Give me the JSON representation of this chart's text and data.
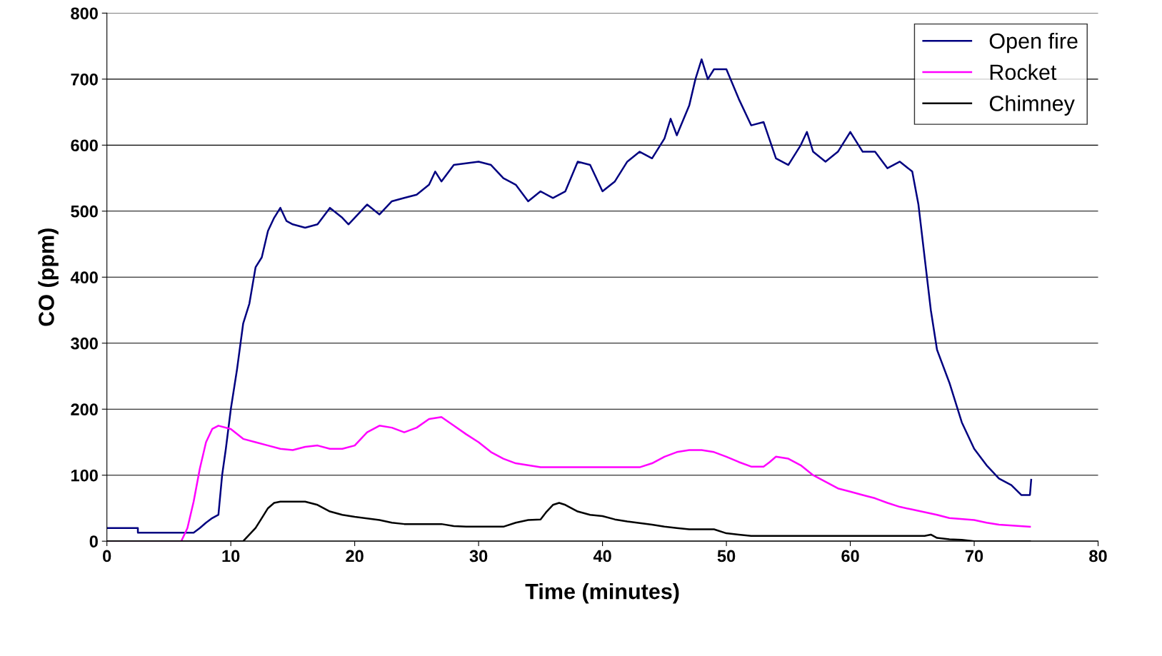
{
  "chart_data": {
    "type": "line",
    "xlabel": "Time (minutes)",
    "ylabel": "CO (ppm)",
    "xlim": [
      0,
      80
    ],
    "xticks": [
      0,
      10,
      20,
      30,
      40,
      50,
      60,
      70,
      80
    ],
    "ylim": [
      0,
      800
    ],
    "yticks": [
      0,
      100,
      200,
      300,
      400,
      500,
      600,
      700,
      800
    ],
    "grid": "y",
    "legend": "top right",
    "marker": "none",
    "line_style": "solid",
    "series": [
      {
        "name": "Open fire",
        "color": "#000080",
        "x": [
          0,
          2.5,
          2.5,
          7,
          7.5,
          8,
          8.5,
          9,
          9.3,
          9.6,
          10,
          10.5,
          11,
          11.5,
          12,
          12.5,
          13,
          13.5,
          14,
          14.5,
          15,
          16,
          17,
          18,
          19,
          19.5,
          20,
          21,
          22,
          23,
          24,
          25,
          26,
          26.5,
          27,
          28,
          30,
          31,
          32,
          33,
          34,
          35,
          36,
          37,
          38,
          39,
          40,
          41,
          42,
          43,
          44,
          45,
          45.5,
          46,
          47,
          47.5,
          48,
          48.5,
          49,
          50,
          51,
          52,
          53,
          54,
          55,
          56,
          56.5,
          57,
          58,
          59,
          60,
          61,
          62,
          63,
          64,
          65,
          65.5,
          66,
          66.5,
          67,
          68,
          69,
          70,
          71,
          72,
          73,
          73.8,
          74.5,
          74.6
        ],
        "values": [
          20,
          20,
          13,
          13,
          20,
          28,
          35,
          40,
          100,
          140,
          200,
          260,
          330,
          360,
          415,
          430,
          470,
          490,
          505,
          485,
          480,
          475,
          480,
          505,
          490,
          480,
          490,
          510,
          495,
          515,
          520,
          525,
          540,
          560,
          545,
          570,
          575,
          570,
          550,
          540,
          515,
          530,
          520,
          530,
          575,
          570,
          530,
          545,
          575,
          590,
          580,
          610,
          640,
          615,
          660,
          700,
          730,
          700,
          715,
          715,
          670,
          630,
          635,
          580,
          570,
          600,
          620,
          590,
          575,
          590,
          620,
          590,
          590,
          565,
          575,
          560,
          510,
          430,
          350,
          290,
          240,
          180,
          140,
          115,
          95,
          85,
          70,
          70,
          93
        ]
      },
      {
        "name": "Rocket",
        "color": "#ff00ff",
        "x": [
          0,
          6,
          6.5,
          7,
          7.5,
          8,
          8.5,
          9,
          10,
          11,
          12,
          13,
          14,
          15,
          16,
          17,
          18,
          19,
          20,
          21,
          22,
          23,
          24,
          25,
          26,
          27,
          28,
          29,
          30,
          31,
          32,
          33,
          34,
          35,
          40,
          43,
          44,
          45,
          46,
          47,
          48,
          49,
          50,
          51,
          52,
          53,
          53.5,
          54,
          55,
          56,
          57,
          58,
          59,
          60,
          61,
          62,
          63,
          64,
          65,
          66,
          67,
          68,
          70,
          71,
          72,
          74.5
        ],
        "values": [
          0,
          0,
          20,
          60,
          110,
          150,
          170,
          175,
          170,
          155,
          150,
          145,
          140,
          138,
          143,
          145,
          140,
          140,
          145,
          165,
          175,
          172,
          165,
          172,
          185,
          188,
          175,
          162,
          150,
          135,
          125,
          118,
          115,
          112,
          112,
          112,
          118,
          128,
          135,
          138,
          138,
          135,
          128,
          120,
          113,
          113,
          120,
          128,
          125,
          115,
          100,
          90,
          80,
          75,
          70,
          65,
          58,
          52,
          48,
          44,
          40,
          35,
          32,
          28,
          25,
          22
        ]
      },
      {
        "name": "Chimney",
        "color": "#000000",
        "x": [
          0,
          11,
          11.5,
          12,
          12.5,
          13,
          13.5,
          14,
          16,
          17,
          18,
          19,
          20,
          22,
          23,
          24,
          27,
          28,
          29,
          32,
          33,
          34,
          35,
          35.5,
          36,
          36.5,
          37,
          38,
          39,
          40,
          41,
          42,
          44,
          45,
          46,
          47,
          49,
          50,
          51,
          52,
          66,
          66.5,
          67,
          68,
          69,
          70,
          74.5
        ],
        "values": [
          0,
          0,
          10,
          20,
          35,
          50,
          58,
          60,
          60,
          55,
          45,
          40,
          37,
          32,
          28,
          26,
          26,
          23,
          22,
          22,
          28,
          32,
          33,
          45,
          55,
          58,
          55,
          45,
          40,
          38,
          33,
          30,
          25,
          22,
          20,
          18,
          18,
          12,
          10,
          8,
          8,
          10,
          5,
          3,
          2,
          0,
          0
        ]
      }
    ]
  }
}
